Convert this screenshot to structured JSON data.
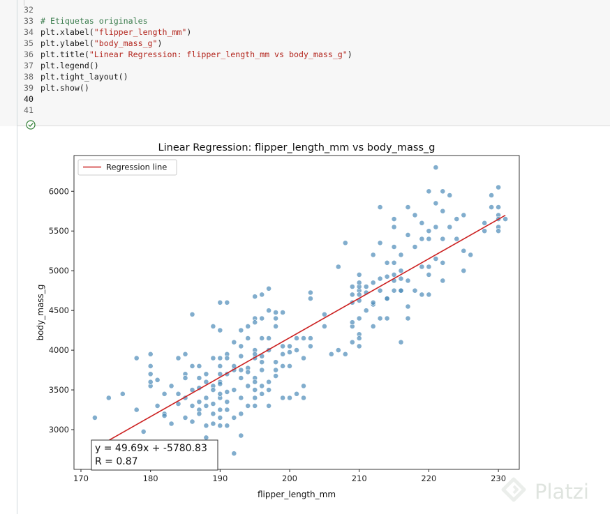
{
  "editor": {
    "lines": [
      {
        "num": "32",
        "parts": []
      },
      {
        "num": "33",
        "parts": [
          {
            "t": "# Etiquetas originales",
            "c": "comment"
          }
        ]
      },
      {
        "num": "34",
        "parts": [
          {
            "t": "plt.xlabel(",
            "c": "name"
          },
          {
            "t": "\"flipper_length_mm\"",
            "c": "str"
          },
          {
            "t": ")",
            "c": "name"
          }
        ]
      },
      {
        "num": "35",
        "parts": [
          {
            "t": "plt.ylabel(",
            "c": "name"
          },
          {
            "t": "\"body_mass_g\"",
            "c": "str"
          },
          {
            "t": ")",
            "c": "name"
          }
        ]
      },
      {
        "num": "36",
        "parts": [
          {
            "t": "plt.title(",
            "c": "name"
          },
          {
            "t": "\"Linear Regression: flipper_length_mm vs body_mass_g\"",
            "c": "str"
          },
          {
            "t": ")",
            "c": "name"
          }
        ]
      },
      {
        "num": "37",
        "parts": [
          {
            "t": "plt.legend()",
            "c": "name"
          }
        ]
      },
      {
        "num": "38",
        "parts": [
          {
            "t": "plt.tight_layout()",
            "c": "name"
          }
        ]
      },
      {
        "num": "39",
        "parts": [
          {
            "t": "plt.show()",
            "c": "name"
          }
        ]
      },
      {
        "num": "40",
        "parts": [],
        "active": true
      },
      {
        "num": "41",
        "parts": []
      }
    ],
    "exec_status_icon": "check-circle-icon",
    "colors": {
      "background": "#f7f7f7",
      "comment": "#3a7c4d",
      "string": "#b3261e",
      "exec_ok": "#2e7d32"
    }
  },
  "chart_data": {
    "type": "scatter",
    "title": "Linear Regression: flipper_length_mm vs body_mass_g",
    "xlabel": "flipper_length_mm",
    "ylabel": "body_mass_g",
    "xlim": [
      169,
      233
    ],
    "ylim": [
      2500,
      6450
    ],
    "xticks": [
      170,
      180,
      190,
      200,
      210,
      220,
      230
    ],
    "yticks": [
      3000,
      3500,
      4000,
      4500,
      5000,
      5500,
      6000
    ],
    "grid": false,
    "legend": {
      "placement": "top-left",
      "entries": [
        "Regression line"
      ]
    },
    "colors": {
      "points": "#4c8ab8",
      "line": "#cc2222"
    },
    "regression": {
      "slope": 49.69,
      "intercept": -5780.83,
      "x_range": [
        172,
        231
      ]
    },
    "annotation": [
      "y = 49.69x + -5780.83",
      "R = 0.87"
    ],
    "points": [
      [
        172,
        3150
      ],
      [
        174,
        3400
      ],
      [
        176,
        3450
      ],
      [
        178,
        3250
      ],
      [
        178,
        3900
      ],
      [
        179,
        2975
      ],
      [
        180,
        3700
      ],
      [
        180,
        3550
      ],
      [
        180,
        3950
      ],
      [
        180,
        3600
      ],
      [
        180,
        3800
      ],
      [
        181,
        3300
      ],
      [
        181,
        3625
      ],
      [
        182,
        3200
      ],
      [
        182,
        3175
      ],
      [
        182,
        3450
      ],
      [
        183,
        3075
      ],
      [
        183,
        3550
      ],
      [
        184,
        3900
      ],
      [
        184,
        3450
      ],
      [
        184,
        3325
      ],
      [
        185,
        3700
      ],
      [
        185,
        3150
      ],
      [
        185,
        3650
      ],
      [
        185,
        3950
      ],
      [
        185,
        3400
      ],
      [
        186,
        4450
      ],
      [
        186,
        3500
      ],
      [
        186,
        3300
      ],
      [
        186,
        3100
      ],
      [
        186,
        3800
      ],
      [
        187,
        3525
      ],
      [
        187,
        3800
      ],
      [
        187,
        3250
      ],
      [
        187,
        3650
      ],
      [
        187,
        3200
      ],
      [
        187,
        3350
      ],
      [
        188,
        3300
      ],
      [
        188,
        3050
      ],
      [
        188,
        2900
      ],
      [
        188,
        3400
      ],
      [
        188,
        3600
      ],
      [
        188,
        3700
      ],
      [
        189,
        3325
      ],
      [
        189,
        3550
      ],
      [
        189,
        3900
      ],
      [
        189,
        3200
      ],
      [
        189,
        4300
      ],
      [
        189,
        3075
      ],
      [
        189,
        3500
      ],
      [
        190,
        4250
      ],
      [
        190,
        3600
      ],
      [
        190,
        3400
      ],
      [
        190,
        3900
      ],
      [
        190,
        4600
      ],
      [
        190,
        3700
      ],
      [
        190,
        3450
      ],
      [
        190,
        3050
      ],
      [
        190,
        3800
      ],
      [
        190,
        3250
      ],
      [
        190,
        3575
      ],
      [
        190,
        3150
      ],
      [
        191,
        4600
      ],
      [
        191,
        3700
      ],
      [
        191,
        3950
      ],
      [
        191,
        3350
      ],
      [
        191,
        3900
      ],
      [
        191,
        3050
      ],
      [
        191,
        3250
      ],
      [
        191,
        3475
      ],
      [
        192,
        4100
      ],
      [
        192,
        3750
      ],
      [
        192,
        2700
      ],
      [
        192,
        3800
      ],
      [
        192,
        3150
      ],
      [
        192,
        3500
      ],
      [
        193,
        3925
      ],
      [
        193,
        3400
      ],
      [
        193,
        4050
      ],
      [
        193,
        3750
      ],
      [
        193,
        3200
      ],
      [
        193,
        3650
      ],
      [
        193,
        2925
      ],
      [
        193,
        4250
      ],
      [
        194,
        3775
      ],
      [
        194,
        4150
      ],
      [
        194,
        3550
      ],
      [
        194,
        3725
      ],
      [
        194,
        3300
      ],
      [
        194,
        4300
      ],
      [
        195,
        4000
      ],
      [
        195,
        3650
      ],
      [
        195,
        3400
      ],
      [
        195,
        3900
      ],
      [
        195,
        3500
      ],
      [
        195,
        4675
      ],
      [
        195,
        4400
      ],
      [
        195,
        4350
      ],
      [
        195,
        3950
      ],
      [
        195,
        3600
      ],
      [
        195,
        3300
      ],
      [
        196,
        3550
      ],
      [
        196,
        4700
      ],
      [
        196,
        4150
      ],
      [
        196,
        3850
      ],
      [
        196,
        3750
      ],
      [
        196,
        4400
      ],
      [
        196,
        3450
      ],
      [
        196,
        3925
      ],
      [
        197,
        3500
      ],
      [
        197,
        4500
      ],
      [
        197,
        3300
      ],
      [
        197,
        4775
      ],
      [
        197,
        4150
      ],
      [
        197,
        3600
      ],
      [
        197,
        4000
      ],
      [
        198,
        4475
      ],
      [
        198,
        3750
      ],
      [
        198,
        4300
      ],
      [
        198,
        3850
      ],
      [
        198,
        3675
      ],
      [
        198,
        4400
      ],
      [
        199,
        3400
      ],
      [
        199,
        4050
      ],
      [
        199,
        4475
      ],
      [
        199,
        3950
      ],
      [
        199,
        3800
      ],
      [
        200,
        3400
      ],
      [
        200,
        4050
      ],
      [
        200,
        3975
      ],
      [
        200,
        3800
      ],
      [
        201,
        4150
      ],
      [
        201,
        3450
      ],
      [
        201,
        4000
      ],
      [
        202,
        4150
      ],
      [
        202,
        3550
      ],
      [
        202,
        3900
      ],
      [
        202,
        3400
      ],
      [
        203,
        4725
      ],
      [
        203,
        4650
      ],
      [
        203,
        4050
      ],
      [
        203,
        4150
      ],
      [
        205,
        4450
      ],
      [
        205,
        4300
      ],
      [
        206,
        3950
      ],
      [
        207,
        5050
      ],
      [
        207,
        4000
      ],
      [
        208,
        3950
      ],
      [
        208,
        5350
      ],
      [
        209,
        4600
      ],
      [
        209,
        4300
      ],
      [
        209,
        4350
      ],
      [
        209,
        4700
      ],
      [
        209,
        4100
      ],
      [
        209,
        4800
      ],
      [
        210,
        4750
      ],
      [
        210,
        4950
      ],
      [
        210,
        4200
      ],
      [
        210,
        4625
      ],
      [
        210,
        4150
      ],
      [
        210,
        4400
      ],
      [
        210,
        4700
      ],
      [
        210,
        4800
      ],
      [
        210,
        4850
      ],
      [
        210,
        4050
      ],
      [
        211,
        4800
      ],
      [
        211,
        4500
      ],
      [
        211,
        4725
      ],
      [
        212,
        4850
      ],
      [
        212,
        4575
      ],
      [
        212,
        5200
      ],
      [
        212,
        4600
      ],
      [
        212,
        4300
      ],
      [
        213,
        4750
      ],
      [
        213,
        5800
      ],
      [
        213,
        4900
      ],
      [
        213,
        4400
      ],
      [
        213,
        5350
      ],
      [
        214,
        4650
      ],
      [
        214,
        5100
      ],
      [
        214,
        4925
      ],
      [
        214,
        4400
      ],
      [
        214,
        4650
      ],
      [
        215,
        4750
      ],
      [
        215,
        5100
      ],
      [
        215,
        5550
      ],
      [
        215,
        5650
      ],
      [
        215,
        5300
      ],
      [
        215,
        4950
      ],
      [
        215,
        4875
      ],
      [
        216,
        4900
      ],
      [
        216,
        5200
      ],
      [
        216,
        4100
      ],
      [
        216,
        5000
      ],
      [
        216,
        4750
      ],
      [
        216,
        4750
      ],
      [
        217,
        5450
      ],
      [
        217,
        5800
      ],
      [
        217,
        4875
      ],
      [
        217,
        4550
      ],
      [
        217,
        4400
      ],
      [
        218,
        5700
      ],
      [
        218,
        5300
      ],
      [
        218,
        4750
      ],
      [
        219,
        5600
      ],
      [
        219,
        5050
      ],
      [
        219,
        4700
      ],
      [
        219,
        5400
      ],
      [
        220,
        5400
      ],
      [
        220,
        5050
      ],
      [
        220,
        6000
      ],
      [
        220,
        4950
      ],
      [
        220,
        4700
      ],
      [
        220,
        5500
      ],
      [
        221,
        6300
      ],
      [
        221,
        5850
      ],
      [
        221,
        5150
      ],
      [
        221,
        5550
      ],
      [
        222,
        6000
      ],
      [
        222,
        5400
      ],
      [
        222,
        5100
      ],
      [
        222,
        4875
      ],
      [
        222,
        5750
      ],
      [
        223,
        5950
      ],
      [
        223,
        5550
      ],
      [
        224,
        5650
      ],
      [
        224,
        5400
      ],
      [
        225,
        5700
      ],
      [
        225,
        5250
      ],
      [
        225,
        5000
      ],
      [
        226,
        5200
      ],
      [
        228,
        5600
      ],
      [
        228,
        5500
      ],
      [
        229,
        5950
      ],
      [
        229,
        5800
      ],
      [
        230,
        5800
      ],
      [
        230,
        6050
      ],
      [
        230,
        5700
      ],
      [
        230,
        5550
      ],
      [
        230,
        5500
      ],
      [
        230,
        5650
      ],
      [
        231,
        5650
      ]
    ]
  },
  "watermark": {
    "text": "Platzi",
    "icon": "platzi-logo-icon"
  }
}
